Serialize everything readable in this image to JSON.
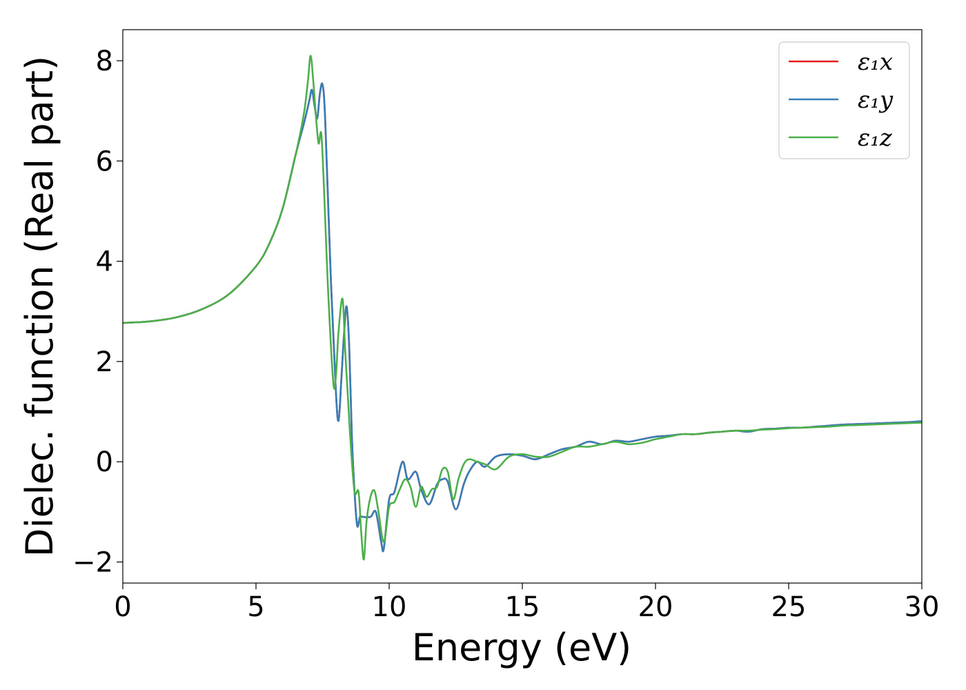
{
  "chart_data": {
    "type": "line",
    "title": "",
    "xlabel": "Energy (eV)",
    "ylabel": "Dielec. function (Real part)",
    "xlim": [
      0,
      30
    ],
    "ylim": [
      -2.42,
      8.62
    ],
    "xticks": [
      0,
      5,
      10,
      15,
      20,
      25,
      30
    ],
    "xtick_labels": [
      "0",
      "5",
      "10",
      "15",
      "20",
      "25",
      "30"
    ],
    "yticks": [
      -2,
      0,
      2,
      4,
      6,
      8
    ],
    "ytick_labels": [
      "−2",
      "0",
      "2",
      "4",
      "6",
      "8"
    ],
    "grid": false,
    "legend": {
      "position": "top-right"
    },
    "series": [
      {
        "name": "ε₁x",
        "color": "#e41a1c",
        "x": [
          0,
          1,
          2,
          3,
          4,
          5,
          5.5,
          6,
          6.5,
          6.8,
          7.0,
          7.1,
          7.2,
          7.3,
          7.4,
          7.5,
          7.6,
          7.8,
          8.0,
          8.1,
          8.2,
          8.3,
          8.4,
          8.5,
          8.6,
          8.7,
          8.8,
          8.9,
          9.0,
          9.3,
          9.5,
          9.7,
          9.8,
          10.0,
          10.2,
          10.5,
          10.7,
          11.0,
          11.2,
          11.5,
          11.8,
          12.0,
          12.2,
          12.5,
          12.8,
          13.0,
          13.3,
          13.6,
          14.0,
          14.5,
          15.0,
          15.5,
          16.0,
          16.5,
          17.0,
          17.5,
          18.0,
          18.5,
          19.0,
          19.5,
          20.0,
          20.5,
          21.0,
          21.5,
          22.0,
          22.5,
          23.0,
          23.5,
          24.0,
          24.5,
          25.0,
          25.5,
          26.0,
          26.5,
          27.0,
          27.5,
          28.0,
          28.5,
          29.0,
          29.5,
          30.0
        ],
        "y": [
          2.77,
          2.8,
          2.88,
          3.05,
          3.35,
          3.9,
          4.35,
          5.05,
          6.15,
          6.75,
          7.2,
          7.42,
          7.1,
          6.85,
          7.35,
          7.52,
          6.8,
          3.8,
          1.4,
          0.82,
          1.6,
          2.5,
          3.1,
          2.3,
          0.5,
          -0.6,
          -1.28,
          -1.1,
          -1.1,
          -1.1,
          -1.0,
          -1.6,
          -1.73,
          -0.75,
          -0.6,
          0.0,
          -0.35,
          -0.2,
          -0.55,
          -0.85,
          -0.45,
          -0.35,
          -0.4,
          -0.95,
          -0.45,
          -0.2,
          0.0,
          -0.1,
          0.1,
          0.15,
          0.12,
          0.05,
          0.15,
          0.25,
          0.3,
          0.4,
          0.35,
          0.42,
          0.4,
          0.45,
          0.5,
          0.52,
          0.55,
          0.55,
          0.58,
          0.6,
          0.62,
          0.6,
          0.65,
          0.66,
          0.68,
          0.68,
          0.7,
          0.72,
          0.74,
          0.75,
          0.76,
          0.77,
          0.78,
          0.79,
          0.81
        ]
      },
      {
        "name": "ε₁y",
        "color": "#377eb8",
        "x": [
          0,
          1,
          2,
          3,
          4,
          5,
          5.5,
          6,
          6.5,
          6.8,
          7.0,
          7.1,
          7.2,
          7.3,
          7.4,
          7.5,
          7.6,
          7.8,
          8.0,
          8.1,
          8.2,
          8.3,
          8.4,
          8.5,
          8.6,
          8.7,
          8.8,
          8.9,
          9.0,
          9.3,
          9.5,
          9.7,
          9.8,
          10.0,
          10.2,
          10.5,
          10.7,
          11.0,
          11.2,
          11.5,
          11.8,
          12.0,
          12.2,
          12.5,
          12.8,
          13.0,
          13.3,
          13.6,
          14.0,
          14.5,
          15.0,
          15.5,
          16.0,
          16.5,
          17.0,
          17.5,
          18.0,
          18.5,
          19.0,
          19.5,
          20.0,
          20.5,
          21.0,
          21.5,
          22.0,
          22.5,
          23.0,
          23.5,
          24.0,
          24.5,
          25.0,
          25.5,
          26.0,
          26.5,
          27.0,
          27.5,
          28.0,
          28.5,
          29.0,
          29.5,
          30.0
        ],
        "y": [
          2.77,
          2.8,
          2.88,
          3.05,
          3.35,
          3.9,
          4.35,
          5.05,
          6.15,
          6.75,
          7.2,
          7.42,
          7.1,
          6.85,
          7.35,
          7.52,
          6.8,
          3.8,
          1.4,
          0.82,
          1.6,
          2.5,
          3.1,
          2.3,
          0.5,
          -0.6,
          -1.28,
          -1.1,
          -1.1,
          -1.1,
          -1.0,
          -1.6,
          -1.73,
          -0.75,
          -0.6,
          0.0,
          -0.35,
          -0.2,
          -0.55,
          -0.85,
          -0.45,
          -0.35,
          -0.4,
          -0.95,
          -0.45,
          -0.2,
          0.0,
          -0.1,
          0.1,
          0.15,
          0.12,
          0.05,
          0.15,
          0.25,
          0.3,
          0.4,
          0.35,
          0.42,
          0.4,
          0.45,
          0.5,
          0.52,
          0.55,
          0.55,
          0.58,
          0.6,
          0.62,
          0.6,
          0.65,
          0.66,
          0.68,
          0.68,
          0.7,
          0.72,
          0.74,
          0.75,
          0.76,
          0.77,
          0.78,
          0.79,
          0.81
        ]
      },
      {
        "name": "ε₁z",
        "color": "#4daf4a",
        "x": [
          0,
          1,
          2,
          3,
          4,
          5,
          5.5,
          6,
          6.5,
          6.8,
          6.95,
          7.05,
          7.15,
          7.25,
          7.35,
          7.45,
          7.55,
          7.7,
          7.9,
          8.0,
          8.1,
          8.25,
          8.35,
          8.45,
          8.55,
          8.7,
          8.85,
          8.95,
          9.05,
          9.15,
          9.3,
          9.45,
          9.6,
          9.8,
          10.0,
          10.2,
          10.4,
          10.6,
          10.8,
          11.0,
          11.2,
          11.4,
          11.6,
          11.8,
          12.0,
          12.2,
          12.4,
          12.6,
          12.8,
          13.0,
          13.3,
          13.6,
          14.0,
          14.5,
          15.0,
          15.5,
          16.0,
          16.5,
          17.0,
          17.5,
          18.0,
          18.5,
          19.0,
          19.5,
          20.0,
          20.5,
          21.0,
          21.5,
          22.0,
          22.5,
          23.0,
          23.5,
          24.0,
          24.5,
          25.0,
          25.5,
          26.0,
          26.5,
          27.0,
          27.5,
          28.0,
          28.5,
          29.0,
          29.5,
          30.0
        ],
        "y": [
          2.77,
          2.8,
          2.88,
          3.05,
          3.35,
          3.9,
          4.35,
          5.05,
          6.15,
          6.95,
          7.6,
          8.1,
          7.6,
          6.9,
          6.35,
          6.55,
          5.5,
          3.5,
          1.6,
          1.7,
          2.6,
          3.25,
          2.2,
          1.3,
          0.4,
          -0.6,
          -0.6,
          -1.4,
          -1.95,
          -1.2,
          -0.7,
          -0.58,
          -1.0,
          -1.6,
          -0.9,
          -0.8,
          -0.55,
          -0.35,
          -0.5,
          -0.9,
          -0.5,
          -0.7,
          -0.55,
          -0.5,
          -0.15,
          -0.2,
          -0.75,
          -0.35,
          -0.05,
          0.05,
          0.0,
          -0.05,
          -0.15,
          0.1,
          0.15,
          0.1,
          0.1,
          0.2,
          0.3,
          0.3,
          0.35,
          0.4,
          0.35,
          0.38,
          0.45,
          0.5,
          0.55,
          0.55,
          0.58,
          0.6,
          0.62,
          0.62,
          0.64,
          0.65,
          0.67,
          0.68,
          0.69,
          0.7,
          0.72,
          0.73,
          0.74,
          0.75,
          0.76,
          0.77,
          0.78
        ]
      }
    ]
  }
}
